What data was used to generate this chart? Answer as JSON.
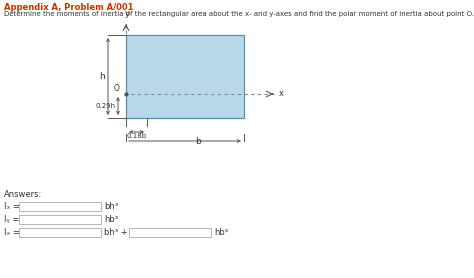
{
  "title_bold": "Appendix A, Problem A/001",
  "title_color": "#cc3300",
  "subtitle": "Determine the moments of inertia of the rectangular area about the x- and y-axes and find the polar moment of inertia about point O.",
  "rect_fill": "#b8d8ea",
  "rect_edge": "#5090b0",
  "bg_color": "#ffffff",
  "answers_label": "Answers:",
  "Ix_label": "Iₓ =",
  "Ix_unit": "bh³",
  "Iy_label": "Iᵧ =",
  "Iy_unit": "hb³",
  "Iz_label": "Iₓ =",
  "Iz_unit1": "bh³",
  "Iz_plus": "+",
  "Iz_unit2": "hb³"
}
